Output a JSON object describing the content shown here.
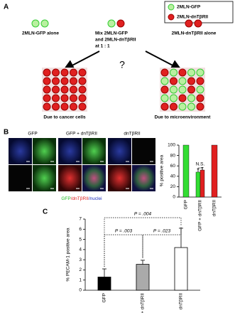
{
  "panel_a": {
    "label": "A",
    "legend": [
      "2MLN-GFP",
      "2MLN-dnTβRII"
    ],
    "groups": [
      "2MLN-GFP alone",
      "Mix 2MLN-GFP",
      "and 2MLN-dnTβRII",
      "at 1 : 1",
      "2MLN-dnTβRII alone"
    ],
    "question": "?",
    "outcomes": [
      "Due to cancer cells",
      "Due to microenvironment"
    ]
  },
  "panel_b": {
    "label": "B",
    "columns": [
      "GFP",
      "GFP + dnTβRII",
      "dnTβRII"
    ],
    "caption": [
      "GFP",
      "/dnTβRII",
      "/nuclei"
    ],
    "chart": {
      "type": "bar",
      "ylabel": "% positive area",
      "categories": [
        "GFP",
        "GFP + dnTβRII",
        "dnTβRII"
      ],
      "series": [
        {
          "color": "#33dd33",
          "values": [
            100,
            48,
            null
          ],
          "errors": [
            null,
            6,
            null
          ]
        },
        {
          "color": "#e02020",
          "values": [
            null,
            52,
            100
          ],
          "errors": [
            null,
            5,
            null
          ]
        }
      ],
      "annotation": "N.S.",
      "ylim": [
        0,
        100
      ],
      "yticks": [
        0,
        20,
        40,
        60,
        80,
        100
      ]
    }
  },
  "panel_c": {
    "label": "C",
    "chart": {
      "type": "bar",
      "ylabel": "% PECAM-1 positive area",
      "categories": [
        "GFP",
        "GFP + dnTβRII",
        "dnTβRII"
      ],
      "values": [
        1.3,
        2.55,
        4.2
      ],
      "errors": [
        0.8,
        0.4,
        1.9
      ],
      "colors": [
        "#000000",
        "#aaaaaa",
        "#ffffff"
      ],
      "ylim": [
        0,
        7
      ],
      "yticks": [
        0,
        1,
        2,
        3,
        4,
        5,
        6,
        7
      ],
      "annotations": [
        "P = .003",
        "P = .023",
        "P = .004"
      ]
    }
  }
}
